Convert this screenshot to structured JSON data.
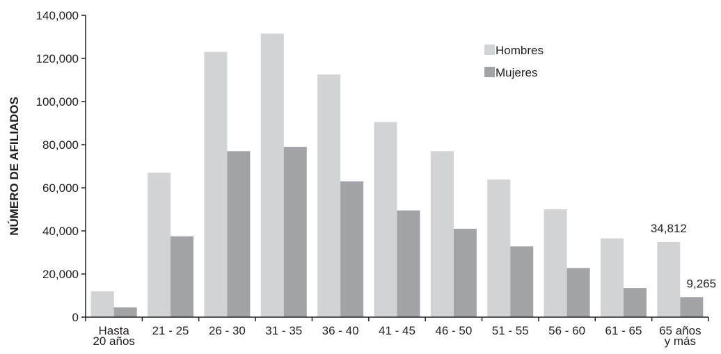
{
  "chart_data": {
    "type": "bar",
    "title": "",
    "xlabel": "",
    "ylabel": "NÚMERO DE AFILIADOS",
    "ylim": [
      0,
      140000
    ],
    "yticks": [
      "0",
      "20,000",
      "40,000",
      "60,000",
      "80,000",
      "100,000",
      "120,000",
      "140,000"
    ],
    "grid": false,
    "legend_position": "top-right",
    "categories": [
      [
        "Hasta",
        "20 años"
      ],
      [
        "21 - 25"
      ],
      [
        "26 - 30"
      ],
      [
        "31 - 35"
      ],
      [
        "36 - 40"
      ],
      [
        "41 - 45"
      ],
      [
        "46 - 50"
      ],
      [
        "51 - 55"
      ],
      [
        "56 - 60"
      ],
      [
        "61 - 65"
      ],
      [
        "65 años",
        "y más"
      ]
    ],
    "series": [
      {
        "name": "Hombres",
        "color": "#d2d3d5",
        "values": [
          12000,
          67000,
          123000,
          131500,
          112500,
          90500,
          77000,
          63800,
          50000,
          36500,
          34812
        ]
      },
      {
        "name": "Mujeres",
        "color": "#a2a3a6",
        "values": [
          4500,
          37500,
          77000,
          79000,
          63000,
          49500,
          41000,
          32800,
          22800,
          13500,
          9265
        ]
      }
    ],
    "data_labels": [
      {
        "series": 0,
        "index": 10,
        "text": "34,812"
      },
      {
        "series": 1,
        "index": 10,
        "text": "9,265"
      }
    ]
  }
}
